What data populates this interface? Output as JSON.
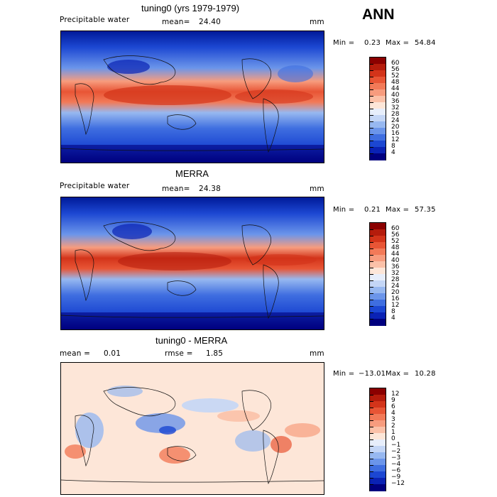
{
  "season": "ANN",
  "panels": [
    {
      "title": "tuning0 (yrs 1979-1979)",
      "left_label": "Precipitable water",
      "mean_label": "mean=",
      "mean_value": "24.40",
      "units": "mm",
      "min_label": "Min =",
      "min_value": "0.23",
      "max_label": "Max =",
      "max_value": "54.84",
      "colorbar_labels": [
        "60",
        "56",
        "52",
        "48",
        "44",
        "40",
        "36",
        "32",
        "28",
        "24",
        "20",
        "16",
        "12",
        "8",
        "4"
      ],
      "colorbar_colors": [
        "#8b0000",
        "#b51c0c",
        "#d3341a",
        "#e85535",
        "#f27a58",
        "#f79c7e",
        "#fbc1a8",
        "#fde6d8",
        "#e7eefb",
        "#c4d6f6",
        "#97b8f0",
        "#6b95ea",
        "#3f6ee0",
        "#1c47d2",
        "#0a22b4",
        "#00007f"
      ]
    },
    {
      "title": "MERRA",
      "left_label": "Precipitable water",
      "mean_label": "mean=",
      "mean_value": "24.38",
      "units": "mm",
      "min_label": "Min =",
      "min_value": "0.21",
      "max_label": "Max =",
      "max_value": "57.35",
      "colorbar_labels": [
        "60",
        "56",
        "52",
        "48",
        "44",
        "40",
        "36",
        "32",
        "28",
        "24",
        "20",
        "16",
        "12",
        "8",
        "4"
      ],
      "colorbar_colors": [
        "#8b0000",
        "#b51c0c",
        "#d3341a",
        "#e85535",
        "#f27a58",
        "#f79c7e",
        "#fbc1a8",
        "#fde6d8",
        "#e7eefb",
        "#c4d6f6",
        "#97b8f0",
        "#6b95ea",
        "#3f6ee0",
        "#1c47d2",
        "#0a22b4",
        "#00007f"
      ]
    },
    {
      "title": "tuning0 - MERRA",
      "left_label": "mean =",
      "mean_label": "0.01",
      "rmse_label": "rmse =",
      "rmse_value": "1.85",
      "units": "mm",
      "min_label": "Min =",
      "min_value": "−13.01",
      "max_label": "Max =",
      "max_value": "10.28",
      "colorbar_labels": [
        "12",
        "9",
        "6",
        "4",
        "3",
        "2",
        "1",
        "0",
        "−1",
        "−2",
        "−3",
        "−4",
        "−6",
        "−9",
        "−12"
      ],
      "colorbar_colors": [
        "#8b0000",
        "#b51c0c",
        "#d3341a",
        "#e85535",
        "#f27a58",
        "#f79c7e",
        "#fbc1a8",
        "#fde6d8",
        "#e7eefb",
        "#c4d6f6",
        "#97b8f0",
        "#6b95ea",
        "#3f6ee0",
        "#1c47d2",
        "#0a22b4",
        "#00007f"
      ]
    }
  ]
}
